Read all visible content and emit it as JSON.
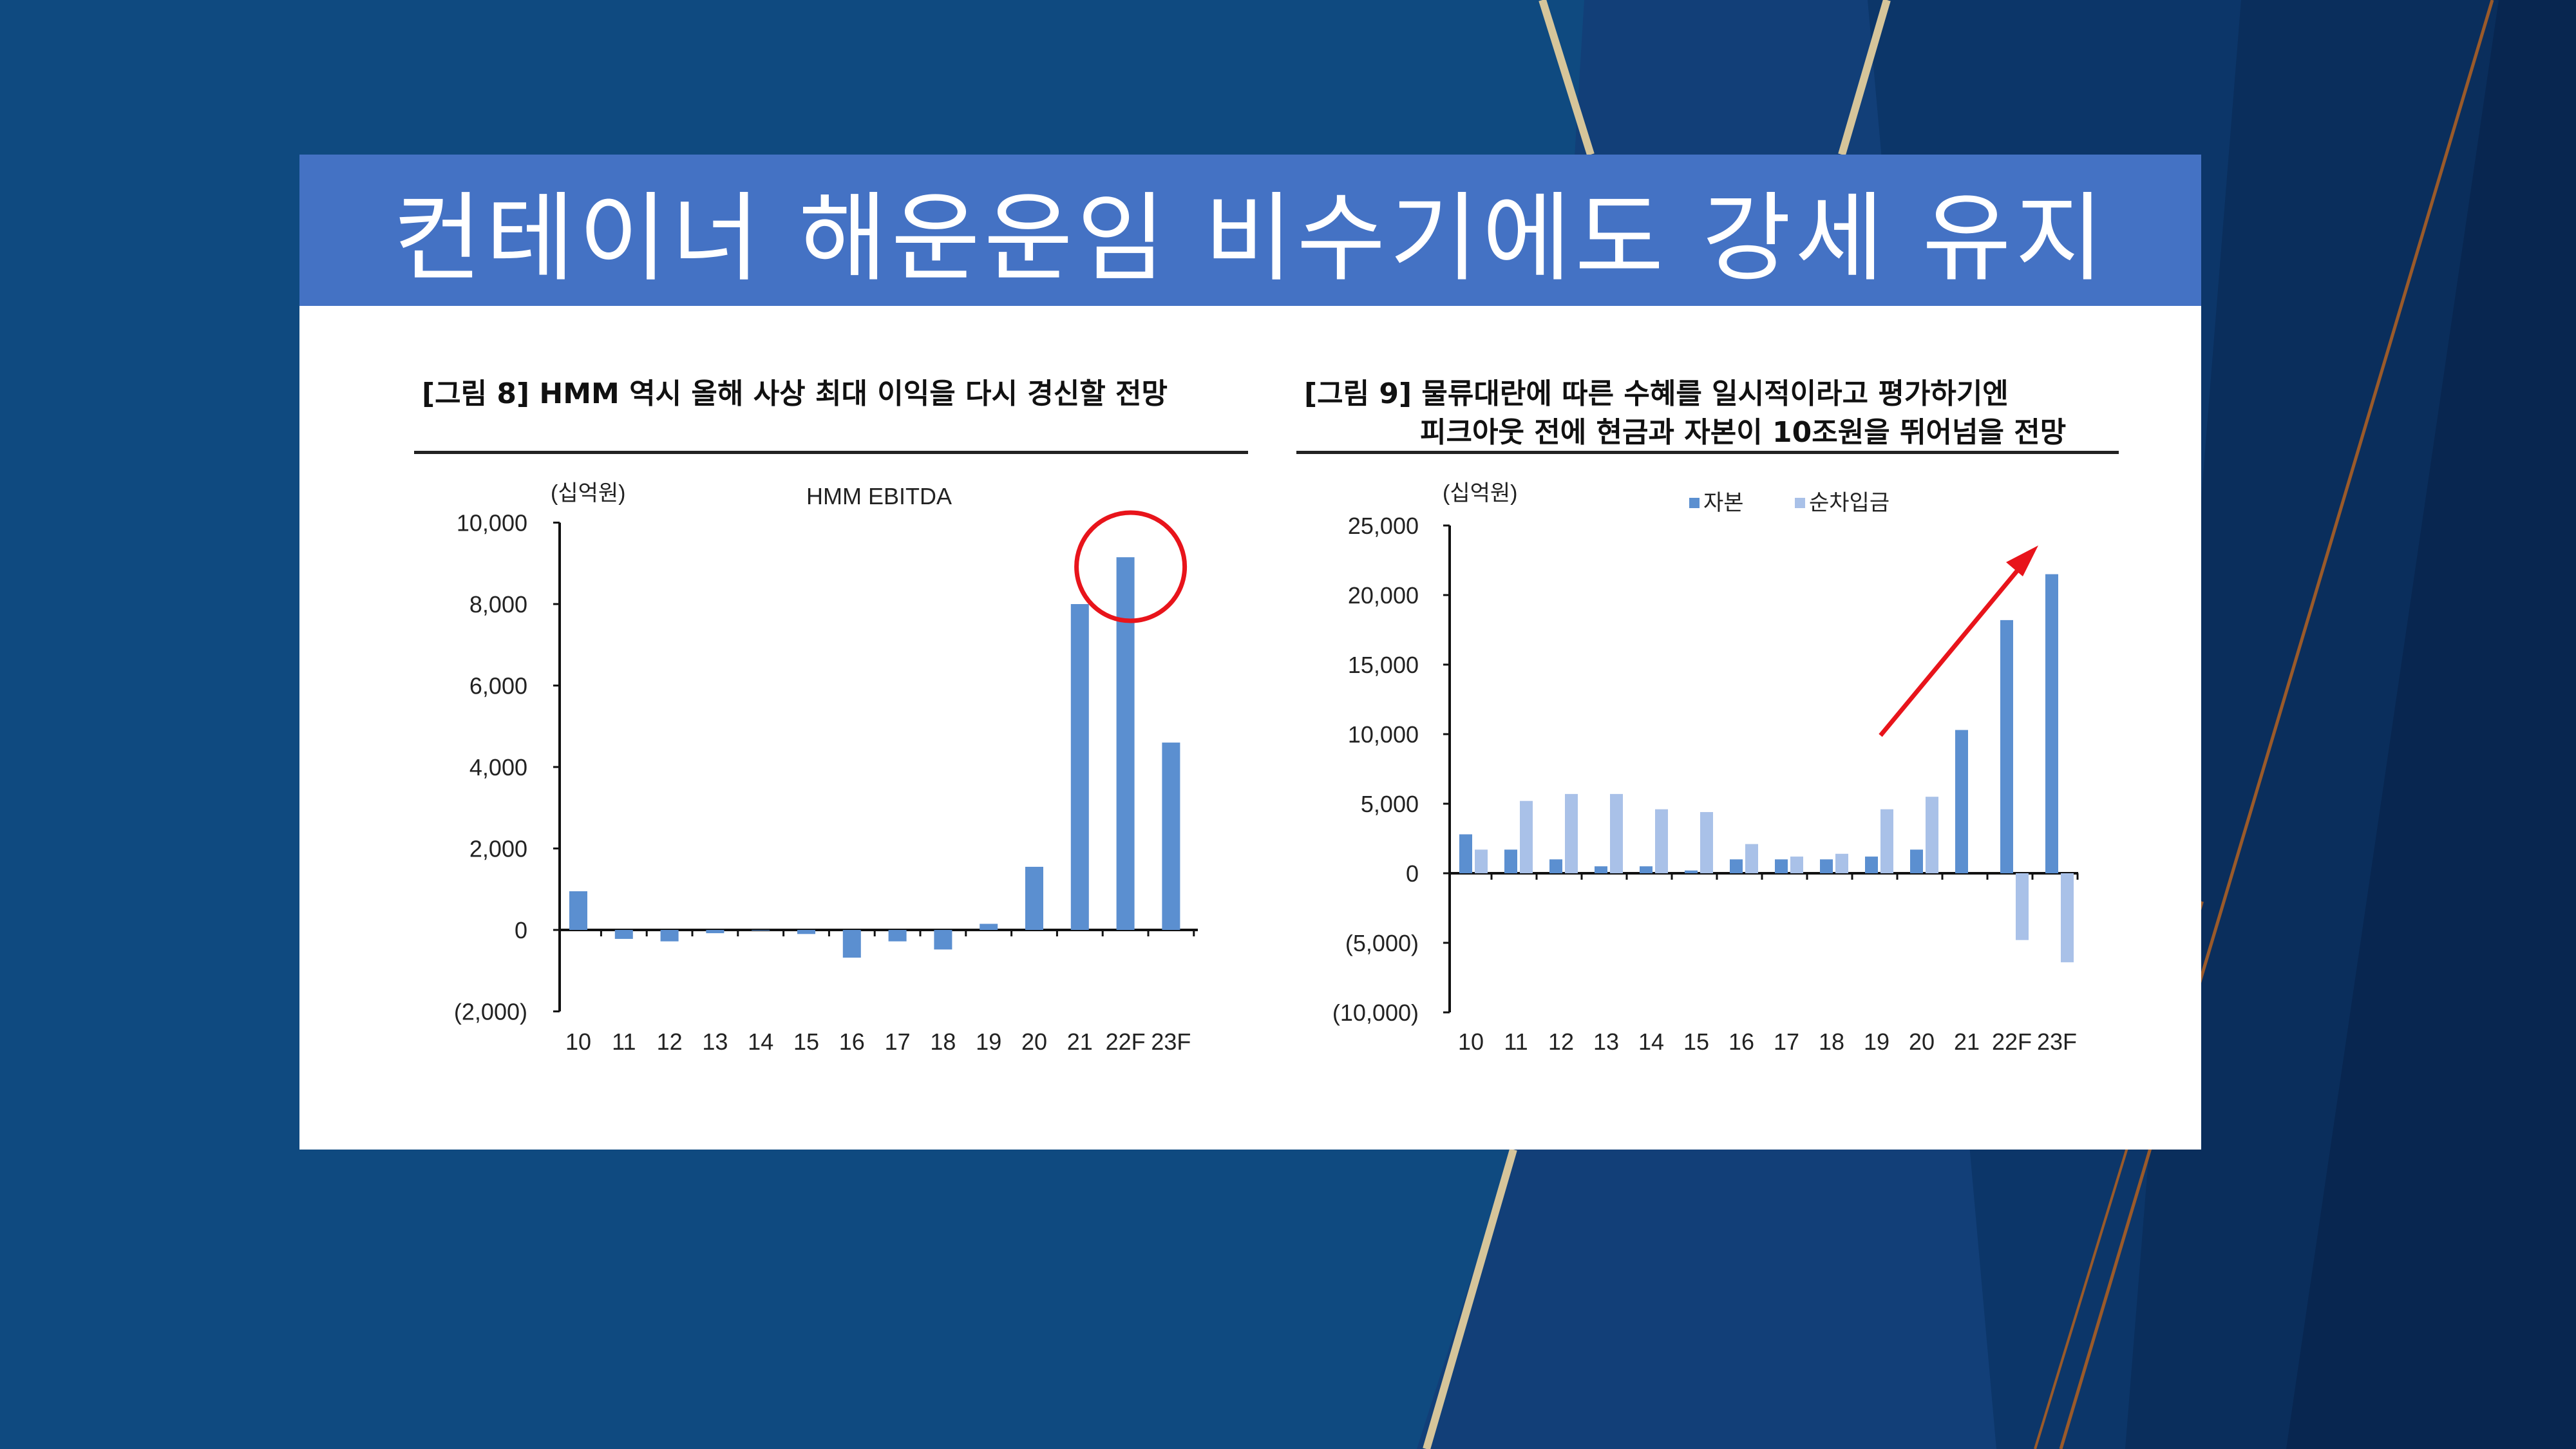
{
  "slide": {
    "title": "컨테이너 해운운임 비수기에도 강세 유지"
  },
  "figure8": {
    "caption": "[그림 8] HMM 역시 올해 사상 최대 이익을 다시 경신할 전망"
  },
  "figure9": {
    "caption_line1": "[그림 9] 물류대란에 따른 수혜를 일시적이라고 평가하기엔",
    "caption_line2": "피크아웃 전에 현금과 자본이 10조원을 뛰어넘을 전망"
  },
  "colors": {
    "background": "#0f4a80",
    "title_bar": "#4472c4",
    "bar_primary": "#5b8fd0",
    "bar_secondary": "#a9c1e8",
    "highlight": "#e8141b",
    "gold_stripe": "#d6c59a"
  },
  "chart_data": [
    {
      "type": "bar",
      "title": "HMM EBITDA",
      "unit_label": "(십억원)",
      "categories": [
        "10",
        "11",
        "12",
        "13",
        "14",
        "15",
        "16",
        "17",
        "18",
        "19",
        "20",
        "21",
        "22F",
        "23F"
      ],
      "series": [
        {
          "name": "HMM EBITDA",
          "values": [
            950,
            -220,
            -280,
            -80,
            0,
            -100,
            -680,
            -280,
            -480,
            150,
            1550,
            8000,
            9150,
            4600
          ]
        }
      ],
      "yticks": [
        "10,000",
        "8,000",
        "6,000",
        "4,000",
        "2,000",
        "0",
        "(2,000)"
      ],
      "ylim": [
        -2000,
        10000
      ],
      "grid": false,
      "annotation": "circle around 22F bar"
    },
    {
      "type": "bar",
      "unit_label": "(십억원)",
      "categories": [
        "10",
        "11",
        "12",
        "13",
        "14",
        "15",
        "16",
        "17",
        "18",
        "19",
        "20",
        "21",
        "22F",
        "23F"
      ],
      "series": [
        {
          "name": "자본",
          "values": [
            2800,
            1700,
            1000,
            500,
            500,
            200,
            1000,
            1000,
            1000,
            1200,
            1700,
            10300,
            18200,
            21500
          ]
        },
        {
          "name": "순차입금",
          "values": [
            1700,
            5200,
            5700,
            5700,
            4600,
            4400,
            2100,
            1200,
            1400,
            4600,
            5500,
            0,
            -4800,
            -6400
          ]
        }
      ],
      "yticks": [
        "25,000",
        "20,000",
        "15,000",
        "10,000",
        "5,000",
        "0",
        "(5,000)",
        "(10,000)"
      ],
      "ylim": [
        -10000,
        25000
      ],
      "legend_position": "top",
      "grid": false,
      "annotation": "red upward arrow toward 23F"
    }
  ]
}
